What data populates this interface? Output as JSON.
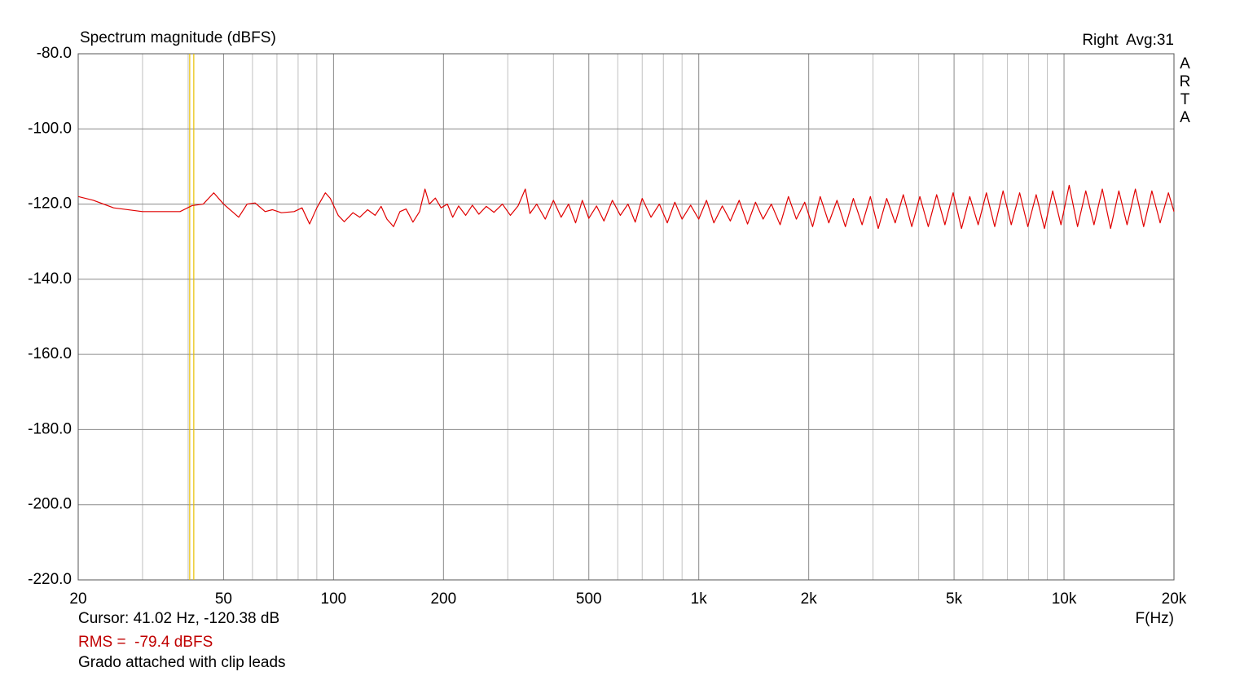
{
  "chart_data": {
    "type": "line",
    "title": "Spectrum magnitude (dBFS)",
    "channel": "Right  Avg:31",
    "brand": "ARTA",
    "xlabel": "F(Hz)",
    "cursor_text": "Cursor: 41.02 Hz, -120.38 dB",
    "cursor_x": 41.02,
    "cursor_color": "#e8c000",
    "rms_text": "RMS =  -79.4 dBFS",
    "note": "Grado attached with clip leads",
    "xscale": "log",
    "grid": true,
    "xlim": [
      20,
      20000
    ],
    "ylim": [
      -220,
      -80
    ],
    "xticks": [
      20,
      50,
      100,
      200,
      500,
      {
        "value": 1000,
        "label": "1k"
      },
      {
        "value": 2000,
        "label": "2k"
      },
      {
        "value": 5000,
        "label": "5k"
      },
      {
        "value": 10000,
        "label": "10k"
      },
      {
        "value": 20000,
        "label": "20k"
      }
    ],
    "xminor": [
      30,
      40,
      60,
      70,
      80,
      90,
      300,
      400,
      600,
      700,
      800,
      900,
      3000,
      4000,
      6000,
      7000,
      8000,
      9000
    ],
    "yticks": [
      {
        "value": -80,
        "label": "-80.0"
      },
      {
        "value": -100,
        "label": "-100.0"
      },
      {
        "value": -120,
        "label": "-120.0"
      },
      {
        "value": -140,
        "label": "-140.0"
      },
      {
        "value": -160,
        "label": "-160.0"
      },
      {
        "value": -180,
        "label": "-180.0"
      },
      {
        "value": -200,
        "label": "-200.0"
      },
      {
        "value": -220,
        "label": "-220.0"
      }
    ],
    "x": [
      20,
      22,
      25,
      30,
      35,
      38,
      41,
      44,
      47,
      50,
      55,
      58,
      61,
      65,
      68,
      72,
      78,
      82,
      86,
      90,
      95,
      98,
      103,
      107,
      113,
      118,
      124,
      130,
      135,
      140,
      146,
      152,
      158,
      165,
      172,
      178,
      183,
      190,
      197,
      205,
      212,
      220,
      230,
      240,
      250,
      262,
      275,
      290,
      305,
      320,
      335,
      345,
      360,
      380,
      400,
      420,
      440,
      460,
      480,
      500,
      525,
      550,
      580,
      610,
      640,
      670,
      700,
      740,
      780,
      820,
      860,
      900,
      950,
      1000,
      1050,
      1100,
      1160,
      1220,
      1290,
      1360,
      1430,
      1500,
      1580,
      1670,
      1760,
      1850,
      1950,
      2050,
      2150,
      2270,
      2390,
      2520,
      2650,
      2800,
      2950,
      3100,
      3270,
      3450,
      3630,
      3830,
      4030,
      4250,
      4480,
      4720,
      4970,
      5240,
      5520,
      5820,
      6130,
      6460,
      6810,
      7170,
      7560,
      7960,
      8390,
      8840,
      9310,
      9810,
      10330,
      10890,
      11470,
      12080,
      12730,
      13410,
      14130,
      14880,
      15680,
      16520,
      17400,
      18330,
      19310,
      20000
    ],
    "series": [
      {
        "color": "#e00000",
        "values": [
          -118,
          -119,
          -121,
          -122,
          -122,
          -122,
          -120.4,
          -120,
          -117,
          -120,
          -123.5,
          -120,
          -119.7,
          -122,
          -121.5,
          -122.3,
          -122,
          -121,
          -125.3,
          -121,
          -117,
          -118.5,
          -123,
          -124.7,
          -122.3,
          -123.5,
          -121.5,
          -123,
          -120.6,
          -124,
          -126,
          -122,
          -121.3,
          -124.8,
          -122,
          -116,
          -120,
          -118.4,
          -121,
          -120,
          -123.5,
          -120.5,
          -123,
          -120.3,
          -122.7,
          -120.6,
          -122.2,
          -120,
          -123,
          -120.5,
          -116,
          -122.5,
          -120,
          -124,
          -119,
          -123.5,
          -120,
          -125,
          -119,
          -123.8,
          -120.5,
          -124.5,
          -119,
          -123,
          -120,
          -124.8,
          -118.5,
          -123.5,
          -120,
          -125,
          -119.5,
          -124,
          -120.3,
          -124,
          -119,
          -125,
          -120.5,
          -124.5,
          -119,
          -125.3,
          -119.5,
          -124,
          -120,
          -125.5,
          -118,
          -124,
          -119.5,
          -126,
          -118,
          -125,
          -119,
          -126,
          -118.5,
          -125.5,
          -118,
          -126.5,
          -118.5,
          -125,
          -117.5,
          -126,
          -118,
          -126,
          -117.5,
          -125.5,
          -117,
          -126.5,
          -118,
          -125.5,
          -117,
          -126,
          -116.5,
          -125.5,
          -117,
          -126,
          -117.5,
          -126.5,
          -116.5,
          -125.5,
          -115,
          -126,
          -116.5,
          -125.5,
          -116,
          -126.5,
          -116.5,
          -125.5,
          -116,
          -126,
          -116.5,
          -125,
          -117,
          -122
        ]
      }
    ]
  }
}
